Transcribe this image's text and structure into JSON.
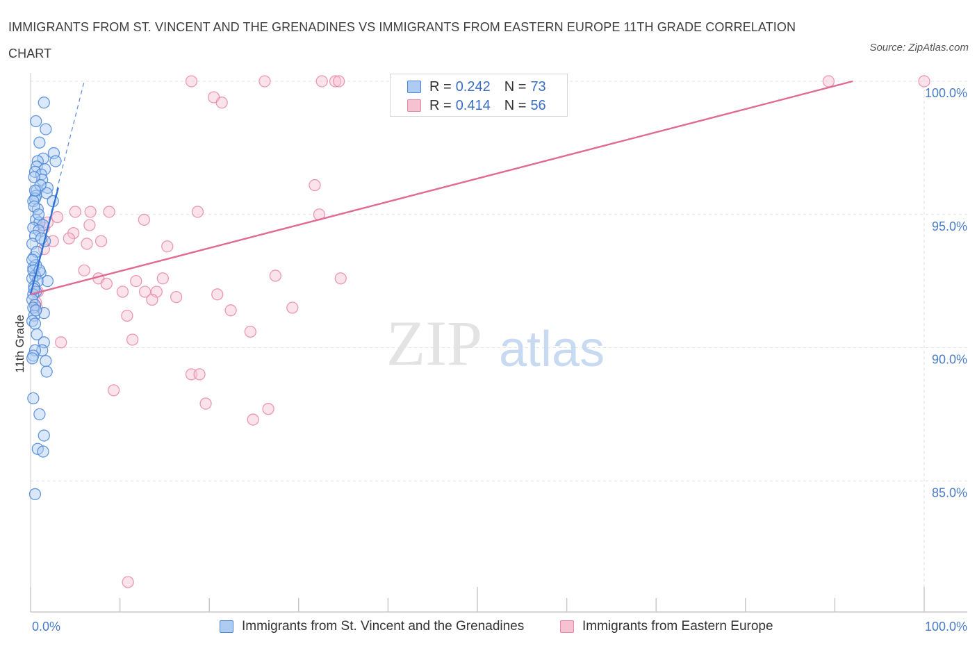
{
  "header": {
    "title": "IMMIGRANTS FROM ST. VINCENT AND THE GRENADINES VS IMMIGRANTS FROM EASTERN EUROPE 11TH GRADE CORRELATION CHART",
    "source": "Source: ZipAtlas.com"
  },
  "colors": {
    "blue_fill": "#aecbf2",
    "blue_stroke": "#4a86d8",
    "blue_line": "#2f6fd0",
    "pink_fill": "#f6c2d2",
    "pink_stroke": "#e887a6",
    "pink_line": "#e06a93",
    "grid": "#e2e2e2",
    "axis": "#c8c8c8",
    "tick_text": "#4a7cc4"
  },
  "legend": {
    "blue": {
      "r_label": "R =",
      "r_value": "0.242",
      "n_label": "N =",
      "n_value": "73"
    },
    "pink": {
      "r_label": "R =",
      "r_value": "0.414",
      "n_label": "N =",
      "n_value": "56"
    }
  },
  "watermark": {
    "zip": "ZIP",
    "atlas": "atlas"
  },
  "chart_data": {
    "type": "scatter",
    "title": "IMMIGRANTS FROM ST. VINCENT AND THE GRENADINES VS IMMIGRANTS FROM EASTERN EUROPE 11TH GRADE CORRELATION CHART",
    "xlabel": "",
    "ylabel": "11th Grade",
    "xlim": [
      0,
      105
    ],
    "ylim": [
      80.0,
      100.4
    ],
    "x_tick_labels": [
      "0.0%",
      "100.0%"
    ],
    "y_tick_values": [
      85,
      90,
      95,
      100
    ],
    "y_tick_labels": [
      "85.0%",
      "90.0%",
      "95.0%",
      "100.0%"
    ],
    "legend_position": "top-center",
    "series": [
      {
        "name": "Immigrants from St. Vincent and the Grenadines",
        "color": "blue",
        "trend": {
          "x": [
            0.0,
            3.1
          ],
          "y": [
            92.0,
            96.0
          ],
          "extended_x": [
            0.0,
            6.0
          ],
          "extended_y": [
            92.0,
            100.0
          ]
        },
        "points": [
          [
            1.5,
            99.2
          ],
          [
            0.6,
            98.5
          ],
          [
            1.7,
            98.2
          ],
          [
            1.0,
            97.7
          ],
          [
            2.6,
            97.3
          ],
          [
            1.4,
            97.1
          ],
          [
            0.8,
            97.0
          ],
          [
            2.8,
            97.0
          ],
          [
            0.7,
            96.8
          ],
          [
            1.6,
            96.7
          ],
          [
            0.5,
            96.6
          ],
          [
            1.2,
            96.5
          ],
          [
            1.3,
            96.3
          ],
          [
            0.4,
            96.4
          ],
          [
            1.9,
            96.0
          ],
          [
            0.7,
            95.9
          ],
          [
            0.6,
            95.7
          ],
          [
            1.8,
            95.8
          ],
          [
            0.5,
            95.6
          ],
          [
            0.3,
            95.5
          ],
          [
            2.5,
            95.5
          ],
          [
            0.8,
            95.2
          ],
          [
            0.4,
            95.3
          ],
          [
            0.6,
            94.8
          ],
          [
            1.0,
            94.7
          ],
          [
            1.4,
            94.6
          ],
          [
            0.3,
            94.5
          ],
          [
            0.9,
            94.4
          ],
          [
            0.5,
            94.2
          ],
          [
            1.6,
            94.0
          ],
          [
            0.2,
            93.9
          ],
          [
            0.4,
            93.4
          ],
          [
            0.6,
            93.1
          ],
          [
            0.3,
            93.0
          ],
          [
            1.1,
            92.8
          ],
          [
            0.5,
            92.7
          ],
          [
            0.2,
            92.6
          ],
          [
            0.8,
            92.5
          ],
          [
            1.9,
            92.5
          ],
          [
            0.4,
            92.3
          ],
          [
            0.6,
            92.1
          ],
          [
            0.3,
            92.0
          ],
          [
            0.2,
            91.8
          ],
          [
            0.5,
            91.6
          ],
          [
            0.3,
            91.5
          ],
          [
            1.5,
            91.3
          ],
          [
            0.4,
            91.2
          ],
          [
            0.2,
            91.0
          ],
          [
            0.5,
            90.9
          ],
          [
            1.5,
            90.2
          ],
          [
            1.3,
            89.9
          ],
          [
            0.5,
            89.9
          ],
          [
            0.3,
            89.7
          ],
          [
            0.2,
            89.6
          ],
          [
            1.7,
            89.5
          ],
          [
            1.8,
            89.1
          ],
          [
            0.3,
            88.1
          ],
          [
            1.0,
            87.5
          ],
          [
            1.5,
            86.7
          ],
          [
            0.8,
            86.2
          ],
          [
            1.4,
            86.1
          ],
          [
            0.5,
            84.5
          ],
          [
            0.3,
            92.9
          ],
          [
            0.7,
            93.6
          ],
          [
            1.2,
            94.1
          ],
          [
            0.9,
            95.0
          ],
          [
            0.4,
            92.2
          ],
          [
            0.6,
            91.4
          ],
          [
            1.0,
            92.9
          ],
          [
            0.2,
            93.3
          ],
          [
            0.7,
            90.5
          ],
          [
            1.1,
            96.1
          ],
          [
            0.5,
            95.9
          ]
        ]
      },
      {
        "name": "Immigrants from Eastern Europe",
        "color": "pink",
        "trend": {
          "x": [
            0.0,
            92.0
          ],
          "y": [
            92.0,
            100.0
          ]
        },
        "points": [
          [
            18.0,
            100.0
          ],
          [
            26.2,
            100.0
          ],
          [
            32.6,
            100.0
          ],
          [
            34.1,
            100.0
          ],
          [
            34.5,
            100.0
          ],
          [
            89.3,
            100.0
          ],
          [
            100.0,
            100.0
          ],
          [
            20.5,
            99.4
          ],
          [
            21.4,
            99.2
          ],
          [
            31.8,
            96.1
          ],
          [
            6.7,
            95.1
          ],
          [
            5.0,
            95.1
          ],
          [
            8.8,
            95.1
          ],
          [
            18.7,
            95.1
          ],
          [
            32.3,
            95.0
          ],
          [
            3.0,
            94.9
          ],
          [
            12.7,
            94.8
          ],
          [
            1.5,
            94.5
          ],
          [
            6.6,
            94.6
          ],
          [
            1.9,
            94.7
          ],
          [
            4.8,
            94.3
          ],
          [
            2.5,
            94.0
          ],
          [
            4.3,
            94.1
          ],
          [
            6.3,
            93.9
          ],
          [
            7.9,
            94.0
          ],
          [
            15.3,
            93.8
          ],
          [
            1.5,
            93.7
          ],
          [
            6.0,
            92.9
          ],
          [
            27.4,
            92.7
          ],
          [
            14.8,
            92.6
          ],
          [
            7.6,
            92.6
          ],
          [
            8.5,
            92.4
          ],
          [
            11.8,
            92.5
          ],
          [
            34.7,
            92.6
          ],
          [
            20.9,
            92.0
          ],
          [
            10.3,
            92.1
          ],
          [
            12.8,
            92.1
          ],
          [
            14.1,
            92.1
          ],
          [
            16.3,
            91.9
          ],
          [
            13.6,
            91.8
          ],
          [
            0.8,
            92.1
          ],
          [
            0.6,
            91.7
          ],
          [
            0.7,
            91.5
          ],
          [
            22.4,
            91.4
          ],
          [
            29.3,
            91.5
          ],
          [
            10.8,
            91.2
          ],
          [
            24.6,
            90.6
          ],
          [
            11.4,
            90.3
          ],
          [
            3.4,
            90.2
          ],
          [
            18.0,
            89.0
          ],
          [
            18.9,
            89.0
          ],
          [
            9.3,
            88.4
          ],
          [
            19.6,
            87.9
          ],
          [
            26.6,
            87.7
          ],
          [
            24.9,
            87.3
          ],
          [
            10.9,
            81.2
          ]
        ]
      }
    ]
  },
  "bottom_legend": {
    "blue_label": "Immigrants from St. Vincent and the Grenadines",
    "pink_label": "Immigrants from Eastern Europe"
  }
}
